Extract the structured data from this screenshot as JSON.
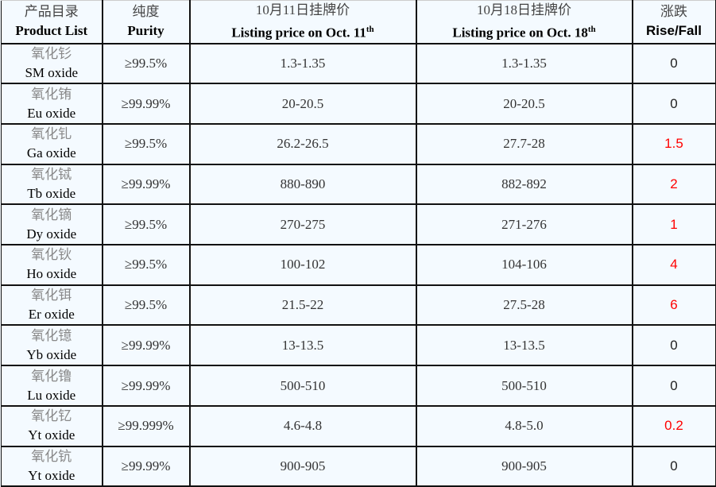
{
  "header": {
    "product": {
      "zh": "产品目录",
      "en": "Product List"
    },
    "purity": {
      "zh": "纯度",
      "en": "Purity"
    },
    "price_oct11": {
      "zh": "10月11日挂牌价",
      "en": "Listing price on Oct. 11",
      "sup": "th"
    },
    "price_oct18": {
      "zh": "10月18日挂牌价",
      "en": "Listing price on Oct. 18",
      "sup": "th"
    },
    "rise_fall": {
      "zh": "涨跌",
      "en": "Rise/Fall"
    }
  },
  "colors": {
    "rise": "#ff0000",
    "unchanged": "#222222",
    "background": "#f4faff"
  },
  "rows": [
    {
      "zh": "氧化钐",
      "en": "SM oxide",
      "purity": "≥99.5%",
      "oct11": "1.3-1.35",
      "oct18": "1.3-1.35",
      "change": "0",
      "up": false
    },
    {
      "zh": "氧化铕",
      "en": "Eu oxide",
      "purity": "≥99.99%",
      "oct11": "20-20.5",
      "oct18": "20-20.5",
      "change": "0",
      "up": false
    },
    {
      "zh": "氧化钆",
      "en": "Ga oxide",
      "purity": "≥99.5%",
      "oct11": "26.2-26.5",
      "oct18": "27.7-28",
      "change": "1.5",
      "up": true
    },
    {
      "zh": "氧化铽",
      "en": "Tb oxide",
      "purity": "≥99.99%",
      "oct11": "880-890",
      "oct18": "882-892",
      "change": "2",
      "up": true
    },
    {
      "zh": "氧化镝",
      "en": "Dy oxide",
      "purity": "≥99.5%",
      "oct11": "270-275",
      "oct18": "271-276",
      "change": "1",
      "up": true
    },
    {
      "zh": "氧化钬",
      "en": "Ho oxide",
      "purity": "≥99.5%",
      "oct11": "100-102",
      "oct18": "104-106",
      "change": "4",
      "up": true
    },
    {
      "zh": "氧化铒",
      "en": "Er oxide",
      "purity": "≥99.5%",
      "oct11": "21.5-22",
      "oct18": "27.5-28",
      "change": "6",
      "up": true
    },
    {
      "zh": "氧化镱",
      "en": "Yb oxide",
      "purity": "≥99.99%",
      "oct11": "13-13.5",
      "oct18": "13-13.5",
      "change": "0",
      "up": false
    },
    {
      "zh": "氧化镥",
      "en": "Lu oxide",
      "purity": "≥99.99%",
      "oct11": "500-510",
      "oct18": "500-510",
      "change": "0",
      "up": false
    },
    {
      "zh": "氧化钇",
      "en": "Yt oxide",
      "purity": "≥99.999%",
      "oct11": "4.6-4.8",
      "oct18": "4.8-5.0",
      "change": "0.2",
      "up": true
    },
    {
      "zh": "氧化钪",
      "en": "Yt oxide",
      "purity": "≥99.99%",
      "oct11": "900-905",
      "oct18": "900-905",
      "change": "0",
      "up": false
    }
  ]
}
